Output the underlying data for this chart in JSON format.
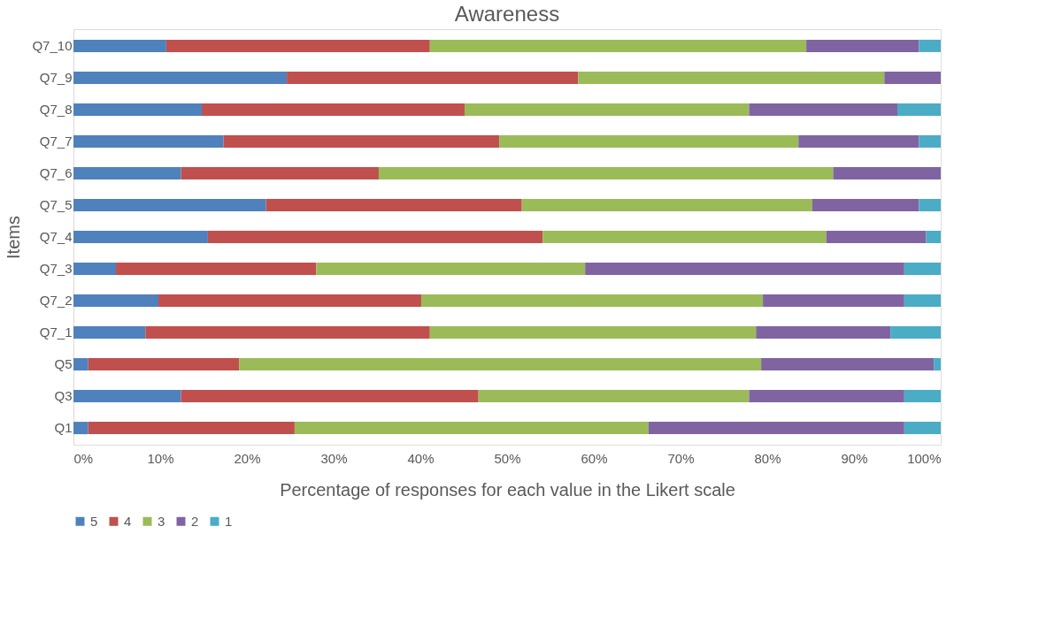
{
  "chart_data": {
    "type": "bar",
    "orientation": "horizontal",
    "stacked": true,
    "title": "Awareness",
    "xlabel": "Percentage of responses for each value in the Likert scale",
    "ylabel": "Items",
    "categories": [
      "Q7_10",
      "Q7_9",
      "Q7_8",
      "Q7_7",
      "Q7_6",
      "Q7_5",
      "Q7_4",
      "Q7_3",
      "Q7_2",
      "Q7_1",
      "Q5",
      "Q3",
      "Q1"
    ],
    "series": [
      {
        "name": "5",
        "color": "#4f81bd",
        "values": [
          10.7,
          24.6,
          14.8,
          17.3,
          12.4,
          22.2,
          15.5,
          4.9,
          9.8,
          8.3,
          1.7,
          12.4,
          1.7
        ]
      },
      {
        "name": "4",
        "color": "#c0504d",
        "values": [
          30.4,
          33.6,
          30.3,
          31.8,
          22.8,
          29.5,
          38.6,
          23.1,
          30.3,
          32.8,
          17.4,
          34.3,
          23.8
        ]
      },
      {
        "name": "3",
        "color": "#9bbb59",
        "values": [
          43.4,
          35.3,
          32.8,
          34.5,
          52.4,
          33.5,
          32.7,
          31.0,
          39.4,
          37.6,
          60.2,
          31.2,
          40.8
        ]
      },
      {
        "name": "2",
        "color": "#8064a2",
        "values": [
          13.0,
          6.5,
          17.1,
          13.9,
          12.4,
          12.3,
          11.5,
          36.8,
          16.3,
          15.5,
          19.9,
          17.9,
          29.5
        ]
      },
      {
        "name": "1",
        "color": "#4bacc6",
        "values": [
          2.5,
          0,
          5.0,
          2.5,
          0,
          2.5,
          1.7,
          4.2,
          4.2,
          5.8,
          0.8,
          4.2,
          4.2
        ]
      }
    ],
    "xlim": [
      0,
      100
    ],
    "xticks": [
      {
        "value": 0,
        "label": "0%"
      },
      {
        "value": 10,
        "label": "10%"
      },
      {
        "value": 20,
        "label": "20%"
      },
      {
        "value": 30,
        "label": "30%"
      },
      {
        "value": 40,
        "label": "40%"
      },
      {
        "value": 50,
        "label": "50%"
      },
      {
        "value": 60,
        "label": "60%"
      },
      {
        "value": 70,
        "label": "70%"
      },
      {
        "value": 80,
        "label": "80%"
      },
      {
        "value": 90,
        "label": "90%"
      },
      {
        "value": 100,
        "label": "100%"
      }
    ],
    "grid": false,
    "legend": "bottom"
  }
}
